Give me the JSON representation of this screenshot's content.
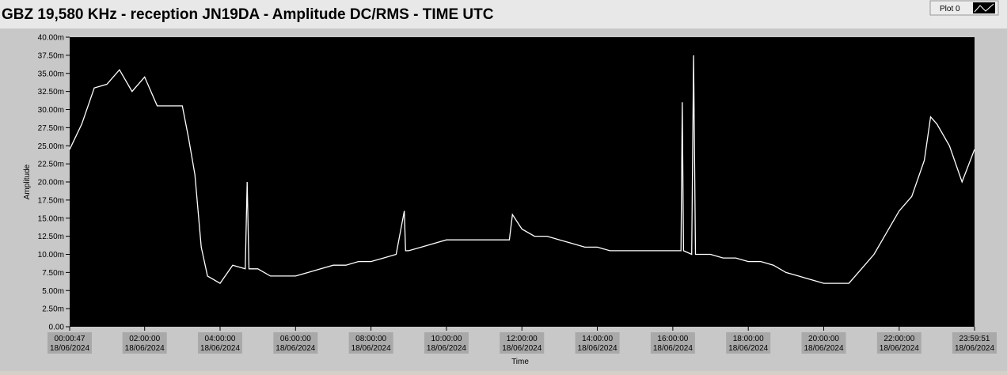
{
  "chart_data": {
    "type": "line",
    "title": "GBZ  19,580 KHz - reception JN19DA -  Amplitude DC/RMS   - TIME UTC",
    "x_label": "Time",
    "y_label": "Amplitude",
    "legend": "Plot 0",
    "xlim": [
      "2024-06-18T00:00:47",
      "2024-06-18T23:59:51"
    ],
    "xticks": [
      {
        "value": "2024-06-18T00:00:47",
        "label": [
          "00:00:47",
          "18/06/2024"
        ]
      },
      {
        "value": "2024-06-18T02:00:00",
        "label": [
          "02:00:00",
          "18/06/2024"
        ]
      },
      {
        "value": "2024-06-18T04:00:00",
        "label": [
          "04:00:00",
          "18/06/2024"
        ]
      },
      {
        "value": "2024-06-18T06:00:00",
        "label": [
          "06:00:00",
          "18/06/2024"
        ]
      },
      {
        "value": "2024-06-18T08:00:00",
        "label": [
          "08:00:00",
          "18/06/2024"
        ]
      },
      {
        "value": "2024-06-18T10:00:00",
        "label": [
          "10:00:00",
          "18/06/2024"
        ]
      },
      {
        "value": "2024-06-18T12:00:00",
        "label": [
          "12:00:00",
          "18/06/2024"
        ]
      },
      {
        "value": "2024-06-18T14:00:00",
        "label": [
          "14:00:00",
          "18/06/2024"
        ]
      },
      {
        "value": "2024-06-18T16:00:00",
        "label": [
          "16:00:00",
          "18/06/2024"
        ]
      },
      {
        "value": "2024-06-18T18:00:00",
        "label": [
          "18:00:00",
          "18/06/2024"
        ]
      },
      {
        "value": "2024-06-18T20:00:00",
        "label": [
          "20:00:00",
          "18/06/2024"
        ]
      },
      {
        "value": "2024-06-18T22:00:00",
        "label": [
          "22:00:00",
          "18/06/2024"
        ]
      },
      {
        "value": "2024-06-18T23:59:51",
        "label": [
          "23:59:51",
          "18/06/2024"
        ]
      }
    ],
    "ylim": [
      0,
      40
    ],
    "yticks": [
      {
        "value": 0,
        "label": "0.00"
      },
      {
        "value": 2.5,
        "label": "2.50m"
      },
      {
        "value": 5,
        "label": "5.00m"
      },
      {
        "value": 7.5,
        "label": "7.50m"
      },
      {
        "value": 10,
        "label": "10.00m"
      },
      {
        "value": 12.5,
        "label": "12.50m"
      },
      {
        "value": 15,
        "label": "15.00m"
      },
      {
        "value": 17.5,
        "label": "17.50m"
      },
      {
        "value": 20,
        "label": "20.00m"
      },
      {
        "value": 22.5,
        "label": "22.50m"
      },
      {
        "value": 25,
        "label": "25.00m"
      },
      {
        "value": 27.5,
        "label": "27.50m"
      },
      {
        "value": 30,
        "label": "30.00m"
      },
      {
        "value": 32.5,
        "label": "32.50m"
      },
      {
        "value": 35,
        "label": "35.00m"
      },
      {
        "value": 37.5,
        "label": "37.50m"
      },
      {
        "value": 40,
        "label": "40.00m"
      }
    ],
    "color": "#ffffff",
    "background": "#000000",
    "x": [
      "2024-06-18T00:00:47",
      "2024-06-18T00:20:00",
      "2024-06-18T00:40:00",
      "2024-06-18T01:00:00",
      "2024-06-18T01:20:00",
      "2024-06-18T01:40:00",
      "2024-06-18T02:00:00",
      "2024-06-18T02:20:00",
      "2024-06-18T02:40:00",
      "2024-06-18T03:00:00",
      "2024-06-18T03:10:00",
      "2024-06-18T03:20:00",
      "2024-06-18T03:30:00",
      "2024-06-18T03:40:00",
      "2024-06-18T04:00:00",
      "2024-06-18T04:20:00",
      "2024-06-18T04:40:00",
      "2024-06-18T04:43:00",
      "2024-06-18T04:46:00",
      "2024-06-18T05:00:00",
      "2024-06-18T05:20:00",
      "2024-06-18T05:40:00",
      "2024-06-18T06:00:00",
      "2024-06-18T06:20:00",
      "2024-06-18T06:40:00",
      "2024-06-18T07:00:00",
      "2024-06-18T07:20:00",
      "2024-06-18T07:40:00",
      "2024-06-18T08:00:00",
      "2024-06-18T08:20:00",
      "2024-06-18T08:40:00",
      "2024-06-18T08:53:00",
      "2024-06-18T08:55:00",
      "2024-06-18T09:00:00",
      "2024-06-18T09:20:00",
      "2024-06-18T09:40:00",
      "2024-06-18T10:00:00",
      "2024-06-18T10:20:00",
      "2024-06-18T10:40:00",
      "2024-06-18T11:00:00",
      "2024-06-18T11:20:00",
      "2024-06-18T11:40:00",
      "2024-06-18T11:45:00",
      "2024-06-18T12:00:00",
      "2024-06-18T12:20:00",
      "2024-06-18T12:40:00",
      "2024-06-18T13:00:00",
      "2024-06-18T13:20:00",
      "2024-06-18T13:40:00",
      "2024-06-18T14:00:00",
      "2024-06-18T14:20:00",
      "2024-06-18T14:40:00",
      "2024-06-18T15:00:00",
      "2024-06-18T15:20:00",
      "2024-06-18T15:40:00",
      "2024-06-18T16:00:00",
      "2024-06-18T16:13:00",
      "2024-06-18T16:15:00",
      "2024-06-18T16:17:00",
      "2024-06-18T16:30:00",
      "2024-06-18T16:33:00",
      "2024-06-18T16:36:00",
      "2024-06-18T17:00:00",
      "2024-06-18T17:20:00",
      "2024-06-18T17:40:00",
      "2024-06-18T18:00:00",
      "2024-06-18T18:20:00",
      "2024-06-18T18:40:00",
      "2024-06-18T19:00:00",
      "2024-06-18T19:20:00",
      "2024-06-18T19:40:00",
      "2024-06-18T20:00:00",
      "2024-06-18T20:20:00",
      "2024-06-18T20:40:00",
      "2024-06-18T21:00:00",
      "2024-06-18T21:20:00",
      "2024-06-18T21:40:00",
      "2024-06-18T22:00:00",
      "2024-06-18T22:20:00",
      "2024-06-18T22:40:00",
      "2024-06-18T22:50:00",
      "2024-06-18T23:00:00",
      "2024-06-18T23:20:00",
      "2024-06-18T23:40:00",
      "2024-06-18T23:59:51"
    ],
    "values": [
      24.5,
      28,
      33,
      33.5,
      35.5,
      32.5,
      34.5,
      30.5,
      30.5,
      30.5,
      26,
      21,
      11,
      7,
      6,
      8.5,
      8,
      20,
      8,
      8,
      7,
      7,
      7,
      7.5,
      8,
      8.5,
      8.5,
      9,
      9,
      9.5,
      10,
      16,
      10.5,
      10.5,
      11,
      11.5,
      12,
      12,
      12,
      12,
      12,
      12,
      15.5,
      13.5,
      12.5,
      12.5,
      12,
      11.5,
      11,
      11,
      10.5,
      10.5,
      10.5,
      10.5,
      10.5,
      10.5,
      10.5,
      31,
      10.5,
      10,
      37.5,
      10,
      10,
      9.5,
      9.5,
      9,
      9,
      8.5,
      7.5,
      7,
      6.5,
      6,
      6,
      6,
      8,
      10,
      13,
      16,
      18,
      23,
      29,
      28,
      25,
      20,
      24.5
    ]
  }
}
